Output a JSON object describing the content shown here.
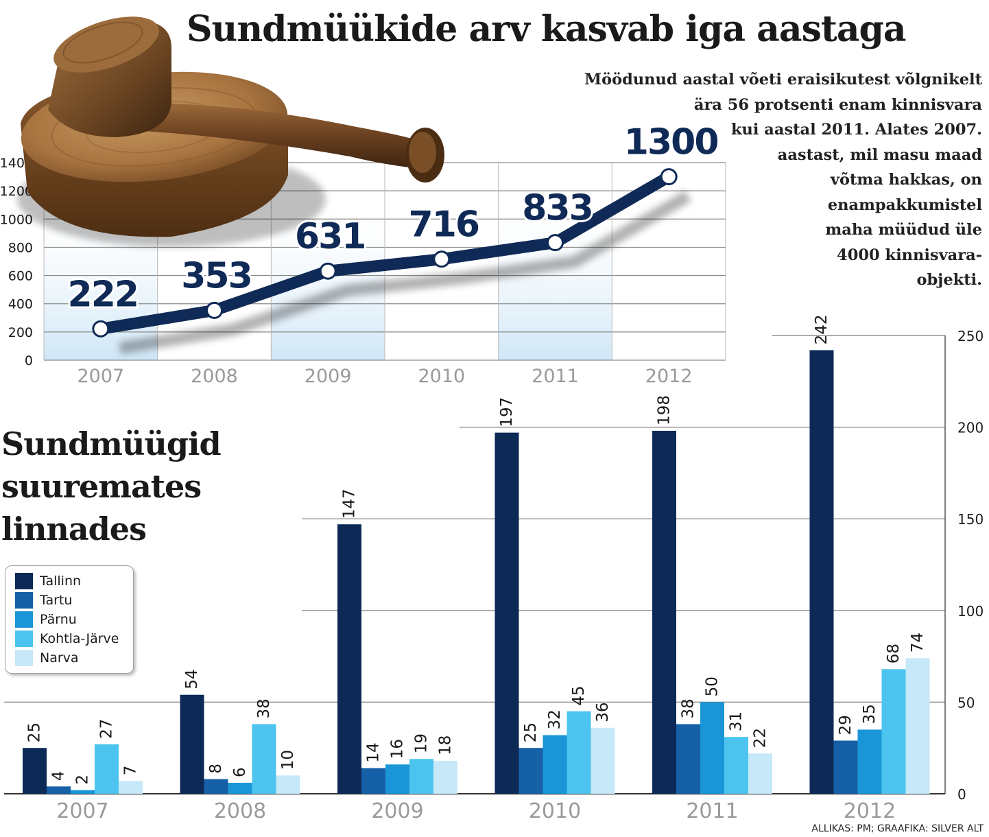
{
  "title": "Sundmüükide arv kasvab iga aastaga",
  "lead": [
    "Möödunud aastal võeti eraisikutest võlgnikelt",
    "ära 56 protsenti enam kinnisvara",
    "kui aastal 2011. Alates 2007.",
    "aastast, mil masu maad",
    "võtma hakkas, on",
    "enampakkumistel",
    "maha müüdud üle",
    "4000 kinnisvara-",
    "objekti."
  ],
  "subtitle": [
    "Sundmüügid",
    "suuremates",
    "linnades"
  ],
  "credit": "ALLIKAS: PM; GRAAFIKA: SILVER ALT",
  "colors": {
    "line": "#0f2a56",
    "label": "#0f2a56",
    "band": "#d2e8f8",
    "axis_text": "#9a9a9a",
    "Tallinn": "#0c2a55",
    "Tartu": "#1560a6",
    "Pärnu": "#1a96d8",
    "Kohtla-Järve": "#4cc4ef",
    "Narva": "#c6e8f8"
  },
  "icons": {
    "gavel": "gavel-illustration"
  },
  "chart_data": [
    {
      "type": "line",
      "title": "Sundmüükide arv kasvab iga aastaga",
      "x": [
        "2007",
        "2008",
        "2009",
        "2010",
        "2011",
        "2012"
      ],
      "values": [
        222,
        353,
        631,
        716,
        833,
        1300
      ],
      "data_labels": [
        "222",
        "353",
        "631",
        "716",
        "833",
        "1300"
      ],
      "ylim": [
        0,
        1400
      ],
      "yticks": [
        "0",
        "200",
        "400",
        "600",
        "800",
        "1000",
        "1200",
        "1400"
      ],
      "yticks_values": [
        0,
        200,
        400,
        600,
        800,
        1000,
        1200,
        1400
      ],
      "grid": true,
      "xlabel": "",
      "ylabel": ""
    },
    {
      "type": "bar",
      "title": "Sundmüügid suuremates linnades",
      "categories": [
        "2007",
        "2008",
        "2009",
        "2010",
        "2011",
        "2012"
      ],
      "series": [
        {
          "name": "Tallinn",
          "values": [
            25,
            54,
            147,
            197,
            198,
            242
          ]
        },
        {
          "name": "Tartu",
          "values": [
            4,
            8,
            14,
            25,
            38,
            29
          ]
        },
        {
          "name": "Pärnu",
          "values": [
            2,
            6,
            16,
            32,
            50,
            35
          ]
        },
        {
          "name": "Kohtla-Järve",
          "values": [
            27,
            38,
            19,
            45,
            31,
            68
          ]
        },
        {
          "name": "Narva",
          "values": [
            7,
            10,
            18,
            36,
            22,
            74
          ]
        }
      ],
      "ylim": [
        0,
        250
      ],
      "yticks": [
        "0",
        "50",
        "100",
        "150",
        "200",
        "250"
      ],
      "yticks_values": [
        0,
        50,
        100,
        150,
        200,
        250
      ],
      "legend": "left",
      "grid": true,
      "xlabel": "",
      "ylabel": ""
    }
  ]
}
